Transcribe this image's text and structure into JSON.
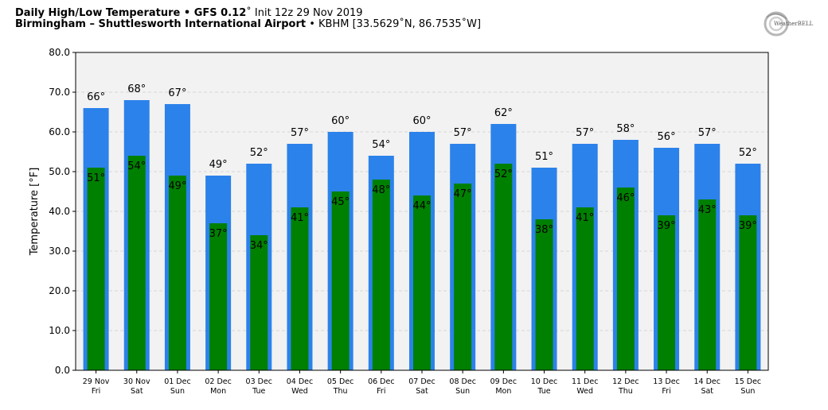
{
  "header": {
    "title_bold": "Daily High/Low Temperature • GFS 0.12",
    "title_rest": "˚ Init 12z 29 Nov 2019",
    "location_bold": "Birmingham – Shuttlesworth International Airport",
    "location_rest": " • KBHM [33.5629˚N, 86.7535˚W]"
  },
  "logo": {
    "text": "WeatherBELL"
  },
  "chart_data": {
    "type": "bar",
    "ylabel": "Temperature [°F]",
    "ylim": [
      0,
      80
    ],
    "yticks": [
      "0.0",
      "10.0",
      "20.0",
      "30.0",
      "40.0",
      "50.0",
      "60.0",
      "70.0",
      "80.0"
    ],
    "grid": true,
    "categories": [
      [
        "29 Nov",
        "Fri"
      ],
      [
        "30 Nov",
        "Sat"
      ],
      [
        "01 Dec",
        "Sun"
      ],
      [
        "02 Dec",
        "Mon"
      ],
      [
        "03 Dec",
        "Tue"
      ],
      [
        "04 Dec",
        "Wed"
      ],
      [
        "05 Dec",
        "Thu"
      ],
      [
        "06 Dec",
        "Fri"
      ],
      [
        "07 Dec",
        "Sat"
      ],
      [
        "08 Dec",
        "Sun"
      ],
      [
        "09 Dec",
        "Mon"
      ],
      [
        "10 Dec",
        "Tue"
      ],
      [
        "11 Dec",
        "Wed"
      ],
      [
        "12 Dec",
        "Thu"
      ],
      [
        "13 Dec",
        "Fri"
      ],
      [
        "14 Dec",
        "Sat"
      ],
      [
        "15 Dec",
        "Sun"
      ]
    ],
    "series": [
      {
        "values": [
          66,
          68,
          67,
          49,
          52,
          57,
          60,
          54,
          60,
          57,
          62,
          51,
          57,
          58,
          56,
          57,
          52
        ],
        "color": "#2b82ea"
      },
      {
        "values": [
          51,
          54,
          49,
          37,
          34,
          41,
          45,
          48,
          44,
          47,
          52,
          38,
          41,
          46,
          39,
          43,
          39
        ],
        "color": "#008000"
      }
    ],
    "plot_background": "#f2f2f2",
    "label_suffix": "°"
  }
}
